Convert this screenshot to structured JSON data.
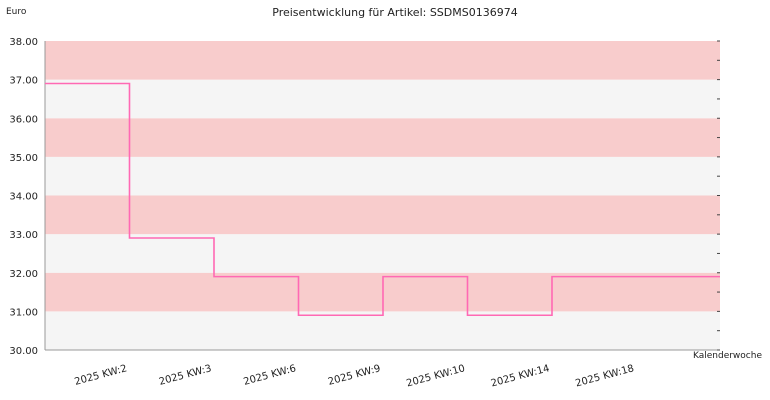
{
  "chart_data": {
    "type": "line",
    "step": true,
    "title": "Preisentwicklung für Artikel: SSDMS0136974",
    "ylabel": "Euro",
    "xlabel": "Kalenderwoche",
    "categories": [
      "2025 KW:2",
      "2025 KW:3",
      "2025 KW:6",
      "2025 KW:9",
      "2025 KW:10",
      "2025 KW:14",
      "2025 KW:18"
    ],
    "series": [
      {
        "values": [
          36.9,
          32.9,
          31.9,
          30.9,
          31.9,
          30.9,
          31.9
        ],
        "color": "#ff69b4"
      }
    ],
    "ylim": [
      30,
      38
    ],
    "yticks": [
      "30.00",
      "31.00",
      "32.00",
      "33.00",
      "34.00",
      "35.00",
      "36.00",
      "37.00",
      "38.00"
    ],
    "bands": {
      "colors": [
        "#f5f5f5",
        "#f8cccc"
      ]
    },
    "grid": false,
    "legend": "none"
  }
}
